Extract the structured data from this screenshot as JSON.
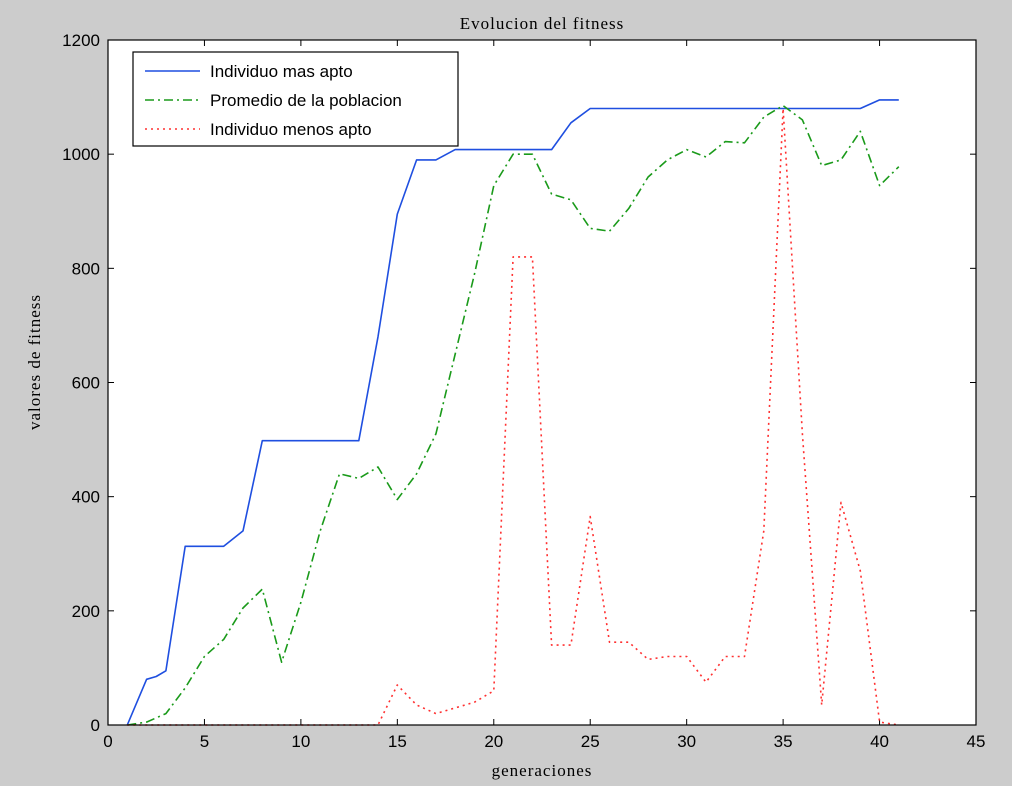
{
  "chart_data": {
    "type": "line",
    "title": "Evolucion del fitness",
    "xlabel": "generaciones",
    "ylabel": "valores de fitness",
    "xlim": [
      0,
      45
    ],
    "ylim": [
      0,
      1200
    ],
    "xticks": [
      0,
      5,
      10,
      15,
      20,
      25,
      30,
      35,
      40,
      45
    ],
    "yticks": [
      0,
      200,
      400,
      600,
      800,
      1000,
      1200
    ],
    "grid": false,
    "legend_position": "top-left",
    "series": [
      {
        "name": "Individuo mas apto",
        "color": "#1f4fe0",
        "style": "solid",
        "x": [
          1,
          2,
          2.5,
          3,
          4,
          5,
          6,
          7,
          8,
          9,
          10,
          11,
          12,
          13,
          14,
          15,
          16,
          17,
          18,
          19,
          20,
          21,
          22,
          23,
          24,
          25,
          26,
          27,
          28,
          29,
          30,
          31,
          32,
          33,
          34,
          35,
          36,
          37,
          38,
          39,
          40,
          41
        ],
        "y": [
          0,
          80,
          85,
          95,
          313,
          313,
          313,
          340,
          498,
          498,
          498,
          498,
          498,
          498,
          680,
          895,
          990,
          990,
          1008,
          1008,
          1008,
          1008,
          1008,
          1008,
          1055,
          1080,
          1080,
          1080,
          1080,
          1080,
          1080,
          1080,
          1080,
          1080,
          1080,
          1080,
          1080,
          1080,
          1080,
          1080,
          1095,
          1095
        ]
      },
      {
        "name": "Promedio de la poblacion",
        "color": "#1a9a1a",
        "style": "dashdot",
        "x": [
          1,
          2,
          3,
          4,
          5,
          6,
          7,
          8,
          9,
          10,
          11,
          12,
          13,
          14,
          15,
          16,
          17,
          18,
          19,
          20,
          21,
          22,
          23,
          24,
          25,
          26,
          27,
          28,
          29,
          30,
          31,
          32,
          33,
          34,
          35,
          36,
          37,
          38,
          39,
          40,
          41
        ],
        "y": [
          0,
          5,
          20,
          65,
          120,
          150,
          205,
          238,
          110,
          215,
          340,
          440,
          432,
          452,
          395,
          440,
          510,
          650,
          790,
          945,
          1000,
          1000,
          930,
          920,
          870,
          865,
          905,
          960,
          990,
          1008,
          995,
          1022,
          1020,
          1065,
          1085,
          1060,
          980,
          990,
          1040,
          945,
          978
        ]
      },
      {
        "name": "Individuo menos apto",
        "color": "#ff3030",
        "style": "dotted",
        "x": [
          1,
          2,
          3,
          4,
          5,
          6,
          7,
          8,
          9,
          10,
          11,
          12,
          13,
          14,
          15,
          16,
          17,
          18,
          19,
          20,
          21,
          22,
          23,
          24,
          25,
          26,
          27,
          28,
          29,
          30,
          31,
          32,
          33,
          34,
          35,
          36,
          37,
          38,
          39,
          40,
          41
        ],
        "y": [
          0,
          0,
          0,
          0,
          0,
          0,
          0,
          0,
          0,
          0,
          0,
          0,
          0,
          0,
          70,
          35,
          20,
          30,
          40,
          60,
          820,
          820,
          140,
          140,
          365,
          145,
          145,
          115,
          120,
          120,
          75,
          120,
          120,
          340,
          1080,
          510,
          35,
          390,
          270,
          5,
          0
        ]
      }
    ]
  }
}
